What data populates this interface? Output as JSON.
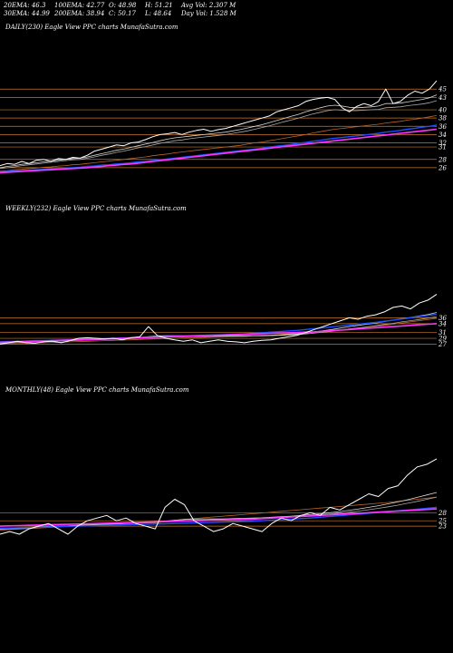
{
  "header": {
    "ema20": "20EMA: 46.3",
    "ema30": "30EMA: 44.99",
    "ema100": "100EMA: 42.77",
    "ema200": "200EMA: 38.94",
    "open": "O: 48.98",
    "close": "C: 50.17",
    "high": "H: 51.21",
    "low": "L: 48.64",
    "avg_vol": "Avg Vol: 2.307 M",
    "day_vol": "Day Vol: 1.528 M"
  },
  "panels": {
    "daily": {
      "title": "DAILY(230) Eagle View PPC charts MunafaSutra.com"
    },
    "weekly": {
      "title": "WEEKLY(232) Eagle View PPC charts MunafaSutra.com"
    },
    "monthly": {
      "title": "MONTHLY(48) Eagle View PPC charts MunafaSutra.com"
    }
  },
  "colors": {
    "price": "#ffffff",
    "ema20": "#d7d7d7",
    "ema30": "#a8a8a8",
    "ema100": "#b8652a",
    "ema200": "#1d4fff",
    "sma": "#ff33ff",
    "gridline": "#c8782d"
  },
  "chart_data": [
    {
      "type": "line",
      "id": "daily",
      "ylim": [
        24,
        49
      ],
      "ticks": [
        45,
        43,
        40,
        38,
        36,
        34,
        32,
        31,
        28,
        26
      ],
      "series": [
        {
          "key": "price",
          "values": [
            26.5,
            27,
            26.8,
            27.5,
            27,
            27.8,
            28,
            27.5,
            28.2,
            28,
            28.5,
            28.3,
            29,
            30,
            30.5,
            31,
            31.5,
            31.3,
            32,
            32.2,
            32.8,
            33.5,
            34,
            34.2,
            34.5,
            34,
            34.6,
            35,
            35.3,
            34.8,
            35.2,
            35.5,
            36,
            36.5,
            37,
            37.5,
            38,
            38.5,
            39.5,
            40,
            40.5,
            41,
            42,
            42.5,
            42.8,
            43,
            42.5,
            40.5,
            39.5,
            40.8,
            41.5,
            41,
            42,
            45,
            41.5,
            42,
            43.5,
            44.5,
            44,
            45,
            47
          ]
        },
        {
          "key": "ema20",
          "values": [
            26,
            26.3,
            26.5,
            26.8,
            27,
            27.2,
            27.4,
            27.6,
            27.8,
            28,
            28.2,
            28.3,
            28.6,
            29,
            29.4,
            29.8,
            30.2,
            30.5,
            30.9,
            31.3,
            31.7,
            32.1,
            32.5,
            32.9,
            33.2,
            33.4,
            33.6,
            33.8,
            34,
            34.2,
            34.4,
            34.6,
            34.9,
            35.2,
            35.6,
            36,
            36.4,
            36.9,
            37.4,
            37.9,
            38.4,
            38.9,
            39.5,
            40,
            40.5,
            40.9,
            41.1,
            40.9,
            40.6,
            40.5,
            40.6,
            40.7,
            40.9,
            41.5,
            41.5,
            41.6,
            41.9,
            42.2,
            42.5,
            42.9,
            43.6
          ]
        },
        {
          "key": "ema30",
          "values": [
            25.8,
            26,
            26.2,
            26.5,
            26.7,
            26.9,
            27.1,
            27.3,
            27.5,
            27.7,
            27.9,
            28,
            28.3,
            28.6,
            29,
            29.3,
            29.7,
            30,
            30.4,
            30.8,
            31.1,
            31.5,
            31.9,
            32.2,
            32.5,
            32.7,
            33,
            33.2,
            33.4,
            33.6,
            33.8,
            34,
            34.3,
            34.6,
            34.9,
            35.3,
            35.7,
            36.1,
            36.6,
            37.1,
            37.5,
            38,
            38.5,
            39,
            39.4,
            39.8,
            40,
            39.9,
            39.8,
            39.8,
            39.9,
            40,
            40.1,
            40.5,
            40.6,
            40.7,
            41,
            41.2,
            41.4,
            41.7,
            42.2
          ]
        },
        {
          "key": "ema100",
          "values": [
            25.2,
            25.3,
            25.5,
            25.6,
            25.8,
            25.9,
            26.1,
            26.2,
            26.4,
            26.5,
            26.7,
            26.8,
            27,
            27.2,
            27.4,
            27.6,
            27.8,
            28,
            28.2,
            28.4,
            28.6,
            28.9,
            29.1,
            29.3,
            29.6,
            29.8,
            30,
            30.2,
            30.4,
            30.6,
            30.8,
            31,
            31.2,
            31.4,
            31.7,
            32,
            32.2,
            32.5,
            32.8,
            33.1,
            33.4,
            33.7,
            34,
            34.4,
            34.7,
            35,
            35.3,
            35.5,
            35.7,
            35.9,
            36.1,
            36.3,
            36.5,
            36.8,
            37,
            37.2,
            37.5,
            37.7,
            38,
            38.3,
            38.6
          ]
        },
        {
          "key": "ema200",
          "values": [
            25,
            25.1,
            25.2,
            25.3,
            25.4,
            25.5,
            25.6,
            25.7,
            25.8,
            25.9,
            26,
            26.1,
            26.3,
            26.4,
            26.6,
            26.7,
            26.9,
            27,
            27.2,
            27.4,
            27.5,
            27.7,
            27.9,
            28.1,
            28.3,
            28.5,
            28.7,
            28.9,
            29.1,
            29.3,
            29.5,
            29.7,
            29.9,
            30.1,
            30.3,
            30.5,
            30.7,
            31,
            31.2,
            31.4,
            31.6,
            31.9,
            32.1,
            32.4,
            32.6,
            32.9,
            33.1,
            33.3,
            33.5,
            33.7,
            33.9,
            34.1,
            34.3,
            34.6,
            34.8,
            35,
            35.3,
            35.5,
            35.8,
            36,
            36.3
          ]
        },
        {
          "key": "sma",
          "values": [
            24.8,
            24.9,
            25,
            25.1,
            25.2,
            25.3,
            25.4,
            25.5,
            25.6,
            25.7,
            25.8,
            25.9,
            26,
            26.2,
            26.3,
            26.5,
            26.6,
            26.8,
            26.9,
            27.1,
            27.3,
            27.5,
            27.7,
            27.9,
            28.1,
            28.3,
            28.5,
            28.7,
            28.9,
            29.1,
            29.3,
            29.5,
            29.7,
            29.9,
            30.1,
            30.3,
            30.5,
            30.7,
            30.9,
            31.1,
            31.3,
            31.5,
            31.7,
            31.9,
            32.1,
            32.3,
            32.5,
            32.7,
            32.9,
            33.1,
            33.3,
            33.5,
            33.7,
            33.9,
            34.1,
            34.3,
            34.5,
            34.7,
            34.9,
            35.1,
            35.3
          ]
        }
      ]
    },
    {
      "type": "line",
      "id": "weekly",
      "ylim": [
        25,
        50
      ],
      "ticks": [
        36,
        34,
        31,
        29,
        27
      ],
      "series": [
        {
          "key": "price",
          "values": [
            27,
            27.5,
            28,
            27.5,
            27.3,
            27.8,
            28,
            27.5,
            28.2,
            29,
            29.2,
            29,
            28.8,
            29,
            28.5,
            29.2,
            29.5,
            33,
            30,
            29,
            28.5,
            28,
            28.5,
            27.5,
            28,
            28.5,
            28,
            27.8,
            27.5,
            28,
            28.3,
            28.5,
            29,
            29.5,
            30,
            31,
            32,
            33,
            34,
            35,
            36,
            35.5,
            36.5,
            37,
            38,
            39.5,
            40,
            39,
            41,
            42,
            44
          ]
        },
        {
          "key": "ema20",
          "values": [
            27.5,
            27.6,
            27.8,
            27.9,
            28,
            28.1,
            28.2,
            28.3,
            28.4,
            28.6,
            28.7,
            28.8,
            28.9,
            29,
            29.1,
            29.2,
            29.3,
            29.6,
            29.8,
            29.9,
            29.9,
            29.9,
            29.9,
            29.9,
            29.9,
            29.9,
            29.9,
            29.9,
            29.9,
            29.9,
            29.9,
            30,
            30.1,
            30.3,
            30.5,
            30.8,
            31.2,
            31.6,
            32,
            32.5,
            33,
            33.4,
            33.8,
            34.2,
            34.7,
            35.2,
            35.7,
            36.1,
            36.6,
            37.1,
            37.8
          ]
        },
        {
          "key": "ema30",
          "values": [
            27.3,
            27.4,
            27.6,
            27.7,
            27.8,
            27.9,
            28,
            28.1,
            28.2,
            28.3,
            28.4,
            28.5,
            28.6,
            28.7,
            28.8,
            28.9,
            29,
            29.2,
            29.3,
            29.4,
            29.5,
            29.5,
            29.6,
            29.6,
            29.6,
            29.7,
            29.7,
            29.7,
            29.7,
            29.8,
            29.8,
            29.9,
            30,
            30.1,
            30.3,
            30.5,
            30.8,
            31.1,
            31.4,
            31.8,
            32.2,
            32.5,
            32.9,
            33.3,
            33.7,
            34.1,
            34.6,
            35,
            35.4,
            35.9,
            36.4
          ]
        },
        {
          "key": "ema100",
          "values": [
            27,
            27.1,
            27.2,
            27.3,
            27.4,
            27.5,
            27.6,
            27.7,
            27.8,
            27.9,
            28,
            28.1,
            28.2,
            28.3,
            28.4,
            28.5,
            28.6,
            28.7,
            28.8,
            28.9,
            29,
            29.1,
            29.2,
            29.3,
            29.4,
            29.5,
            29.6,
            29.7,
            29.8,
            29.9,
            30,
            30.1,
            30.3,
            30.5,
            30.7,
            30.9,
            31.1,
            31.3,
            31.6,
            31.9,
            32.2,
            32.5,
            32.8,
            33.1,
            33.4,
            33.8,
            34.2,
            34.6,
            35,
            35.4,
            35.8
          ]
        },
        {
          "key": "ema200",
          "values": [
            27.8,
            27.9,
            28,
            28.1,
            28.2,
            28.2,
            28.3,
            28.4,
            28.5,
            28.6,
            28.7,
            28.8,
            28.9,
            29,
            29.1,
            29.2,
            29.3,
            29.4,
            29.5,
            29.6,
            29.7,
            29.8,
            29.9,
            30,
            30.1,
            30.2,
            30.3,
            30.4,
            30.5,
            30.7,
            30.9,
            31.1,
            31.3,
            31.5,
            31.7,
            32,
            32.3,
            32.6,
            32.9,
            33.2,
            33.5,
            33.8,
            34.1,
            34.4,
            34.8,
            35.2,
            35.6,
            36,
            36.4,
            36.8,
            37.2
          ]
        },
        {
          "key": "sma",
          "values": [
            27.6,
            27.7,
            27.8,
            27.9,
            28,
            28.1,
            28.2,
            28.3,
            28.4,
            28.5,
            28.6,
            28.7,
            28.8,
            28.9,
            29,
            29.1,
            29.2,
            29.3,
            29.4,
            29.5,
            29.6,
            29.7,
            29.8,
            29.9,
            30,
            30.1,
            30.2,
            30.3,
            30.4,
            30.5,
            30.6,
            30.7,
            30.8,
            30.9,
            31,
            31.1,
            31.2,
            31.4,
            31.6,
            31.8,
            32,
            32.2,
            32.4,
            32.6,
            32.8,
            33,
            33.2,
            33.4,
            33.6,
            33.8,
            34
          ]
        }
      ]
    },
    {
      "type": "line",
      "id": "monthly",
      "ylim": [
        19,
        50
      ],
      "ticks": [
        28,
        25,
        23
      ],
      "series": [
        {
          "key": "price",
          "values": [
            20,
            21,
            20,
            22,
            23,
            24,
            22,
            20,
            23,
            25,
            26,
            27,
            25,
            26,
            24,
            23,
            22,
            30,
            33,
            31,
            25,
            23,
            21,
            22,
            24,
            23,
            22,
            21,
            24,
            26,
            25,
            27,
            28,
            27,
            30,
            29,
            31,
            33,
            35,
            34,
            37,
            38,
            42,
            45,
            46,
            48
          ]
        },
        {
          "key": "ema20",
          "values": [
            22,
            22.2,
            22.3,
            22.5,
            22.7,
            22.9,
            23,
            23.1,
            23.3,
            23.5,
            23.7,
            23.9,
            24,
            24.2,
            24.3,
            24.4,
            24.4,
            24.8,
            25.2,
            25.5,
            25.6,
            25.7,
            25.7,
            25.7,
            25.8,
            25.9,
            26,
            26.1,
            26.3,
            26.5,
            26.7,
            27,
            27.3,
            27.6,
            28,
            28.4,
            28.9,
            29.4,
            30,
            30.6,
            31.3,
            32,
            32.8,
            33.7,
            34.6,
            35.5
          ]
        },
        {
          "key": "ema30",
          "values": [
            21.8,
            22,
            22.1,
            22.3,
            22.5,
            22.7,
            22.8,
            22.9,
            23.1,
            23.3,
            23.5,
            23.7,
            23.8,
            24,
            24.1,
            24.2,
            24.3,
            24.6,
            24.9,
            25.1,
            25.2,
            25.3,
            25.4,
            25.4,
            25.5,
            25.6,
            25.7,
            25.8,
            26,
            26.2,
            26.4,
            26.6,
            26.9,
            27.2,
            27.5,
            27.8,
            28.2,
            28.6,
            29.1,
            29.6,
            30.2,
            30.8,
            31.5,
            32.2,
            33,
            33.8
          ]
        },
        {
          "key": "ema100",
          "values": [
            21.5,
            21.7,
            21.9,
            22.1,
            22.3,
            22.5,
            22.7,
            22.9,
            23.1,
            23.3,
            23.5,
            23.7,
            23.9,
            24.1,
            24.3,
            24.5,
            24.7,
            24.9,
            25.2,
            25.5,
            25.8,
            26.1,
            26.4,
            26.7,
            27,
            27.3,
            27.6,
            27.9,
            28.2,
            28.5,
            28.8,
            29.1,
            29.4,
            29.7,
            30,
            30.3,
            30.6,
            30.9,
            31.2,
            31.5,
            31.8,
            32.2,
            32.6,
            33,
            33.4,
            33.8
          ]
        },
        {
          "key": "ema200",
          "values": [
            22.2,
            22.3,
            22.4,
            22.5,
            22.6,
            22.7,
            22.8,
            22.9,
            23,
            23.1,
            23.2,
            23.3,
            23.4,
            23.5,
            23.6,
            23.7,
            23.8,
            23.9,
            24,
            24.1,
            24.2,
            24.3,
            24.4,
            24.5,
            24.6,
            24.7,
            24.8,
            25,
            25.2,
            25.4,
            25.6,
            25.8,
            26,
            26.3,
            26.6,
            26.9,
            27.2,
            27.5,
            27.8,
            28.1,
            28.4,
            28.7,
            29,
            29.3,
            29.6,
            30
          ]
        },
        {
          "key": "sma",
          "values": [
            23,
            23.1,
            23.2,
            23.3,
            23.4,
            23.5,
            23.6,
            23.7,
            23.8,
            23.9,
            24,
            24.1,
            24.2,
            24.3,
            24.4,
            24.5,
            24.6,
            24.7,
            24.8,
            24.9,
            25,
            25.1,
            25.2,
            25.3,
            25.4,
            25.5,
            25.6,
            25.8,
            26,
            26.2,
            26.4,
            26.6,
            26.8,
            27,
            27.2,
            27.4,
            27.6,
            27.8,
            28,
            28.2,
            28.4,
            28.6,
            28.8,
            29,
            29.2,
            29.4
          ]
        }
      ]
    }
  ]
}
